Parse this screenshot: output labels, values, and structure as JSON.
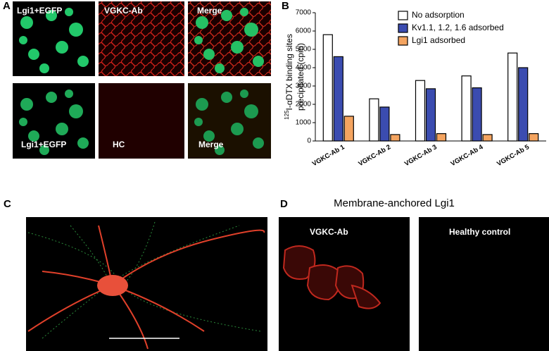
{
  "panels": {
    "A": {
      "label": "A",
      "images": [
        "Lgi1+EGFP",
        "VGKC-Ab",
        "Merge",
        "Lgi1+EGFP",
        "HC",
        "Merge"
      ]
    },
    "B": {
      "label": "B"
    },
    "C": {
      "label": "C"
    },
    "D": {
      "label": "D",
      "title": "Membrane-anchored Lgi1",
      "images": [
        "VGKC-Ab",
        "Healthy control"
      ]
    }
  },
  "chart_data": {
    "type": "bar",
    "ylabel": {
      "superscript": "125",
      "lines": [
        "I-αDTX binding sites",
        "precipitated (cpm)"
      ]
    },
    "categories": [
      "VGKC-Ab 1",
      "VGKC-Ab 2",
      "VGKC-Ab 3",
      "VGKC-Ab 4",
      "VGKC-Ab 5"
    ],
    "series": [
      {
        "name": "No adsorption",
        "color": "#ffffff",
        "values": [
          5800,
          2300,
          3300,
          3550,
          4800
        ]
      },
      {
        "name": "Kv1.1, 1.2, 1.6 adsorbed",
        "color": "#3b4cb0",
        "values": [
          4600,
          1850,
          2850,
          2900,
          4000
        ]
      },
      {
        "name": "Lgi1 adsorbed",
        "color": "#f4a460",
        "values": [
          1350,
          350,
          400,
          350,
          400
        ]
      }
    ],
    "ylim": [
      0,
      7000
    ],
    "yticks": [
      0,
      1000,
      2000,
      3000,
      4000,
      5000,
      6000,
      7000
    ],
    "legend": "top-right"
  }
}
